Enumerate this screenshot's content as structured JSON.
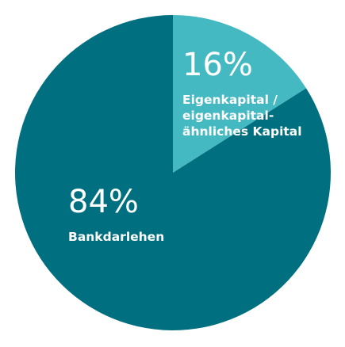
{
  "chart_data": {
    "type": "pie",
    "slices": [
      {
        "value_pct": "16%",
        "value": 16,
        "label_lines": [
          "Eigenkapital /",
          "eigenkapital-",
          "ähnliches Kapital"
        ],
        "color": "#45b9c2"
      },
      {
        "value_pct": "84%",
        "value": 84,
        "label_lines": [
          "Bankdarlehen"
        ],
        "color": "#007080"
      }
    ],
    "start": "12 o'clock",
    "direction": "clockwise"
  }
}
